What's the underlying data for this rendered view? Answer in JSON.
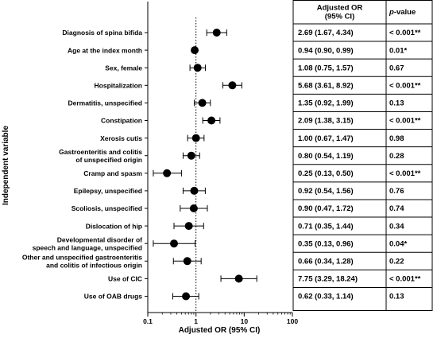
{
  "chart_data": {
    "type": "forest",
    "xlabel": "Adjusted OR (95% CI)",
    "ylabel": "Independent variable",
    "x_scale": "log",
    "xlim": [
      0.1,
      100
    ],
    "x_ticks": [
      "0.1",
      "1",
      "10",
      "100"
    ],
    "reference_line": 1,
    "table_headers": {
      "or": "Adjusted OR\n(95% CI)",
      "p": "p-value"
    },
    "rows": [
      {
        "label": "Diagnosis of spina bifida",
        "or": 2.69,
        "lo": 1.67,
        "hi": 4.34,
        "or_text": "2.69 (1.67, 4.34)",
        "p_text": "< 0.001**"
      },
      {
        "label": "Age at the index month",
        "or": 0.94,
        "lo": 0.9,
        "hi": 0.99,
        "or_text": "0.94 (0.90, 0.99)",
        "p_text": "0.01*"
      },
      {
        "label": "Sex, female",
        "or": 1.08,
        "lo": 0.75,
        "hi": 1.57,
        "or_text": "1.08 (0.75, 1.57)",
        "p_text": "0.67"
      },
      {
        "label": "Hospitalization",
        "or": 5.68,
        "lo": 3.61,
        "hi": 8.92,
        "or_text": "5.68 (3.61, 8.92)",
        "p_text": "< 0.001**"
      },
      {
        "label": "Dermatitis, unspecified",
        "or": 1.35,
        "lo": 0.92,
        "hi": 1.99,
        "or_text": "1.35 (0.92, 1.99)",
        "p_text": "0.13"
      },
      {
        "label": "Constipation",
        "or": 2.09,
        "lo": 1.38,
        "hi": 3.15,
        "or_text": "2.09 (1.38, 3.15)",
        "p_text": "< 0.001**"
      },
      {
        "label": "Xerosis cutis",
        "or": 1.0,
        "lo": 0.67,
        "hi": 1.47,
        "or_text": "1.00 (0.67, 1.47)",
        "p_text": "0.98"
      },
      {
        "label": "Gastroenteritis and colitis\nof unspecified origin",
        "or": 0.8,
        "lo": 0.54,
        "hi": 1.19,
        "or_text": "0.80 (0.54, 1.19)",
        "p_text": "0.28"
      },
      {
        "label": "Cramp and spasm",
        "or": 0.25,
        "lo": 0.13,
        "hi": 0.5,
        "or_text": "0.25 (0.13, 0.50)",
        "p_text": "< 0.001**"
      },
      {
        "label": "Epilepsy, unspecified",
        "or": 0.92,
        "lo": 0.54,
        "hi": 1.56,
        "or_text": "0.92 (0.54, 1.56)",
        "p_text": "0.76"
      },
      {
        "label": "Scoliosis, unspecified",
        "or": 0.9,
        "lo": 0.47,
        "hi": 1.72,
        "or_text": "0.90 (0.47, 1.72)",
        "p_text": "0.74"
      },
      {
        "label": "Dislocation of hip",
        "or": 0.71,
        "lo": 0.35,
        "hi": 1.44,
        "or_text": "0.71 (0.35, 1.44)",
        "p_text": "0.34"
      },
      {
        "label": "Developmental disorder of\nspeech and language, unspecified",
        "or": 0.35,
        "lo": 0.13,
        "hi": 0.96,
        "or_text": "0.35 (0.13, 0.96)",
        "p_text": "0.04*"
      },
      {
        "label": "Other and unspecified gastroenteritis\nand colitis of infectious origin",
        "or": 0.66,
        "lo": 0.34,
        "hi": 1.28,
        "or_text": "0.66 (0.34, 1.28)",
        "p_text": "0.22"
      },
      {
        "label": "Use of CIC",
        "or": 7.75,
        "lo": 3.29,
        "hi": 18.24,
        "or_text": "7.75 (3.29, 18.24)",
        "p_text": "< 0.001**"
      },
      {
        "label": "Use of OAB drugs",
        "or": 0.62,
        "lo": 0.33,
        "hi": 1.14,
        "or_text": "0.62 (0.33, 1.14)",
        "p_text": "0.13"
      }
    ]
  }
}
